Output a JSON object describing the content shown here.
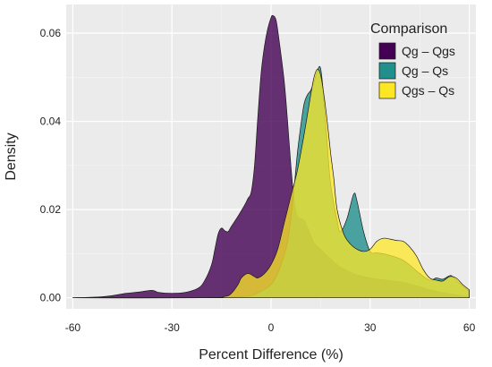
{
  "chart_data": {
    "type": "area",
    "subtype": "density",
    "xlabel": "Percent Difference (%)",
    "ylabel": "Density",
    "xlim": [
      -62,
      62
    ],
    "ylim": [
      -0.0025,
      0.0665
    ],
    "xticks": [
      -60,
      -30,
      0,
      30,
      60
    ],
    "xtick_labels": [
      "-60",
      "-30",
      "0",
      "30",
      "60"
    ],
    "yticks": [
      0.0,
      0.02,
      0.04,
      0.06
    ],
    "ytick_labels": [
      "0.00",
      "0.02",
      "0.04",
      "0.06"
    ],
    "grid": true,
    "background": "#EBEBEB",
    "legend": {
      "title": "Comparison",
      "placement": "top-right"
    },
    "series": [
      {
        "name": "Qg – Qgs",
        "color": "#440154",
        "alpha": 0.8,
        "points": [
          [
            -60,
            0.0
          ],
          [
            -52,
            0.0002
          ],
          [
            -48,
            0.0005
          ],
          [
            -44,
            0.001
          ],
          [
            -40,
            0.0013
          ],
          [
            -36,
            0.0017
          ],
          [
            -34,
            0.0012
          ],
          [
            -30,
            0.001
          ],
          [
            -26,
            0.0012
          ],
          [
            -22,
            0.0022
          ],
          [
            -20,
            0.004
          ],
          [
            -18,
            0.0075
          ],
          [
            -17,
            0.011
          ],
          [
            -16,
            0.0145
          ],
          [
            -15,
            0.0158
          ],
          [
            -14,
            0.0152
          ],
          [
            -13,
            0.015
          ],
          [
            -12,
            0.0162
          ],
          [
            -10,
            0.0185
          ],
          [
            -8,
            0.021
          ],
          [
            -7,
            0.0225
          ],
          [
            -6,
            0.024
          ],
          [
            -5,
            0.03
          ],
          [
            -4,
            0.041
          ],
          [
            -3,
            0.051
          ],
          [
            -2,
            0.057
          ],
          [
            -1,
            0.061
          ],
          [
            0,
            0.0635
          ],
          [
            0.5,
            0.064
          ],
          [
            1.5,
            0.063
          ],
          [
            2.5,
            0.058
          ],
          [
            4,
            0.049
          ],
          [
            5,
            0.04
          ],
          [
            6,
            0.03
          ],
          [
            7,
            0.022
          ],
          [
            8,
            0.0185
          ],
          [
            9,
            0.018
          ],
          [
            10,
            0.0175
          ],
          [
            11,
            0.016
          ],
          [
            13,
            0.0125
          ],
          [
            15,
            0.011
          ],
          [
            20,
            0.0075
          ],
          [
            25,
            0.0055
          ],
          [
            30,
            0.0045
          ],
          [
            35,
            0.004
          ],
          [
            40,
            0.0035
          ],
          [
            45,
            0.0025
          ],
          [
            50,
            0.0015
          ],
          [
            55,
            0.0008
          ],
          [
            60,
            0.0002
          ]
        ]
      },
      {
        "name": "Qg – Qs",
        "color": "#21908C",
        "alpha": 0.8,
        "points": [
          [
            -60,
            0.0
          ],
          [
            -20,
            0.0
          ],
          [
            -10,
            0.0002
          ],
          [
            -6,
            0.0005
          ],
          [
            -3,
            0.0015
          ],
          [
            0,
            0.003
          ],
          [
            2,
            0.0055
          ],
          [
            3,
            0.0075
          ],
          [
            4,
            0.0098
          ],
          [
            5,
            0.0128
          ],
          [
            6,
            0.018
          ],
          [
            7,
            0.025
          ],
          [
            8,
            0.033
          ],
          [
            9,
            0.039
          ],
          [
            10,
            0.044
          ],
          [
            11,
            0.046
          ],
          [
            12,
            0.047
          ],
          [
            13,
            0.049
          ],
          [
            14,
            0.0515
          ],
          [
            15,
            0.052
          ],
          [
            16,
            0.045
          ],
          [
            17,
            0.035
          ],
          [
            18,
            0.026
          ],
          [
            20,
            0.0175
          ],
          [
            21,
            0.015
          ],
          [
            23,
            0.018
          ],
          [
            25,
            0.0235
          ],
          [
            26,
            0.022
          ],
          [
            28,
            0.015
          ],
          [
            30,
            0.0105
          ],
          [
            32,
            0.0102
          ],
          [
            35,
            0.0098
          ],
          [
            40,
            0.0085
          ],
          [
            45,
            0.0055
          ],
          [
            48,
            0.004
          ],
          [
            50,
            0.0045
          ],
          [
            52,
            0.0042
          ],
          [
            54,
            0.005
          ],
          [
            55,
            0.0048
          ],
          [
            57,
            0.0033
          ],
          [
            60,
            0.0015
          ]
        ]
      },
      {
        "name": "Qgs – Qs",
        "color": "#FDE725",
        "alpha": 0.75,
        "points": [
          [
            -60,
            0.0
          ],
          [
            -20,
            0.0
          ],
          [
            -14,
            0.0003
          ],
          [
            -12,
            0.001
          ],
          [
            -10,
            0.003
          ],
          [
            -9,
            0.0045
          ],
          [
            -7,
            0.0055
          ],
          [
            -5,
            0.0048
          ],
          [
            -4,
            0.0045
          ],
          [
            -2,
            0.0055
          ],
          [
            0,
            0.0075
          ],
          [
            2,
            0.011
          ],
          [
            4,
            0.017
          ],
          [
            6,
            0.023
          ],
          [
            8,
            0.029
          ],
          [
            10,
            0.037
          ],
          [
            12,
            0.046
          ],
          [
            13,
            0.05
          ],
          [
            14,
            0.0518
          ],
          [
            15,
            0.0505
          ],
          [
            16,
            0.046
          ],
          [
            17,
            0.04
          ],
          [
            18,
            0.033
          ],
          [
            19,
            0.027
          ],
          [
            20,
            0.02
          ],
          [
            22,
            0.0145
          ],
          [
            24,
            0.0122
          ],
          [
            26,
            0.011
          ],
          [
            28,
            0.0105
          ],
          [
            30,
            0.011
          ],
          [
            32,
            0.0128
          ],
          [
            34,
            0.0135
          ],
          [
            36,
            0.0133
          ],
          [
            38,
            0.013
          ],
          [
            40,
            0.0128
          ],
          [
            42,
            0.0115
          ],
          [
            44,
            0.0095
          ],
          [
            46,
            0.0065
          ],
          [
            48,
            0.0045
          ],
          [
            50,
            0.004
          ],
          [
            52,
            0.0038
          ],
          [
            54,
            0.0048
          ],
          [
            56,
            0.0045
          ],
          [
            58,
            0.003
          ],
          [
            60,
            0.0018
          ]
        ]
      }
    ]
  }
}
